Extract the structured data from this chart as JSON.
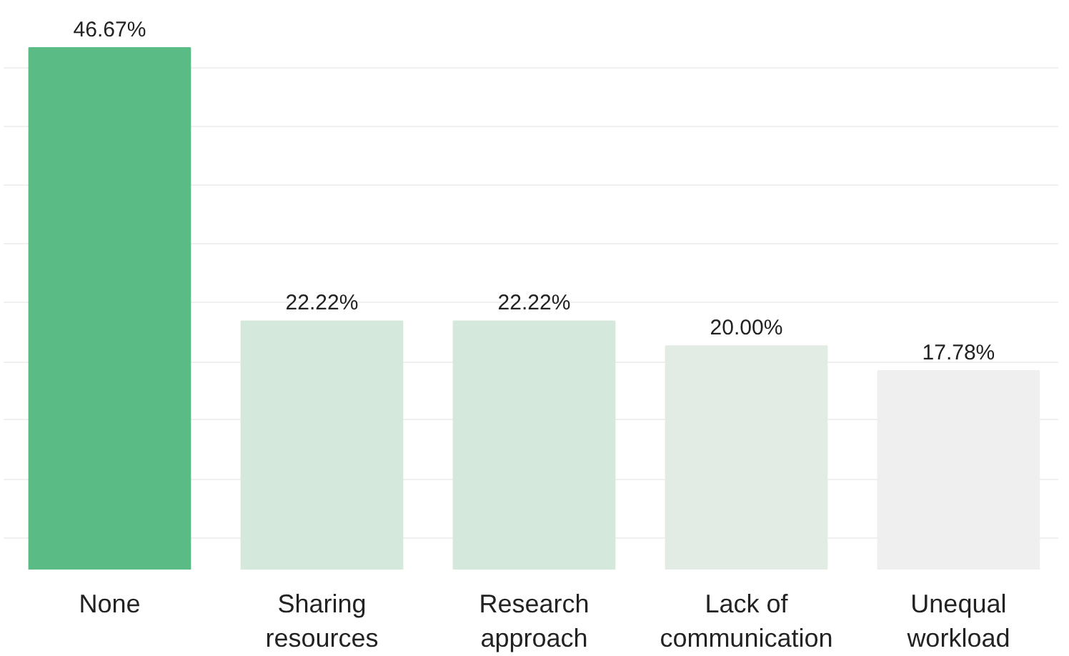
{
  "chart_data": {
    "type": "bar",
    "categories": [
      "None",
      "Sharing resources",
      "Research approach",
      "Lack of communication",
      "Unequal workload"
    ],
    "values": [
      46.67,
      22.22,
      22.22,
      20.0,
      17.78
    ],
    "colors": [
      "#5bbb84",
      "#d5e8dc",
      "#d5e8dc",
      "#e2ece4",
      "#efefef"
    ],
    "value_labels": [
      "46.67%",
      "22.22%",
      "22.22%",
      "20.00%",
      "17.78%"
    ],
    "yticks": [
      {
        "value": 2.8,
        "label": null
      },
      {
        "value": 8.1,
        "label": null
      },
      {
        "value": 13.4,
        "label": null
      },
      {
        "value": 18.6,
        "label": null
      },
      {
        "value": 23.9,
        "label": null
      },
      {
        "value": 29.1,
        "label": null
      },
      {
        "value": 34.4,
        "label": null
      },
      {
        "value": 39.7,
        "label": null
      },
      {
        "value": 44.9,
        "label": null
      }
    ],
    "grid": "y",
    "tick_labels": "x"
  }
}
